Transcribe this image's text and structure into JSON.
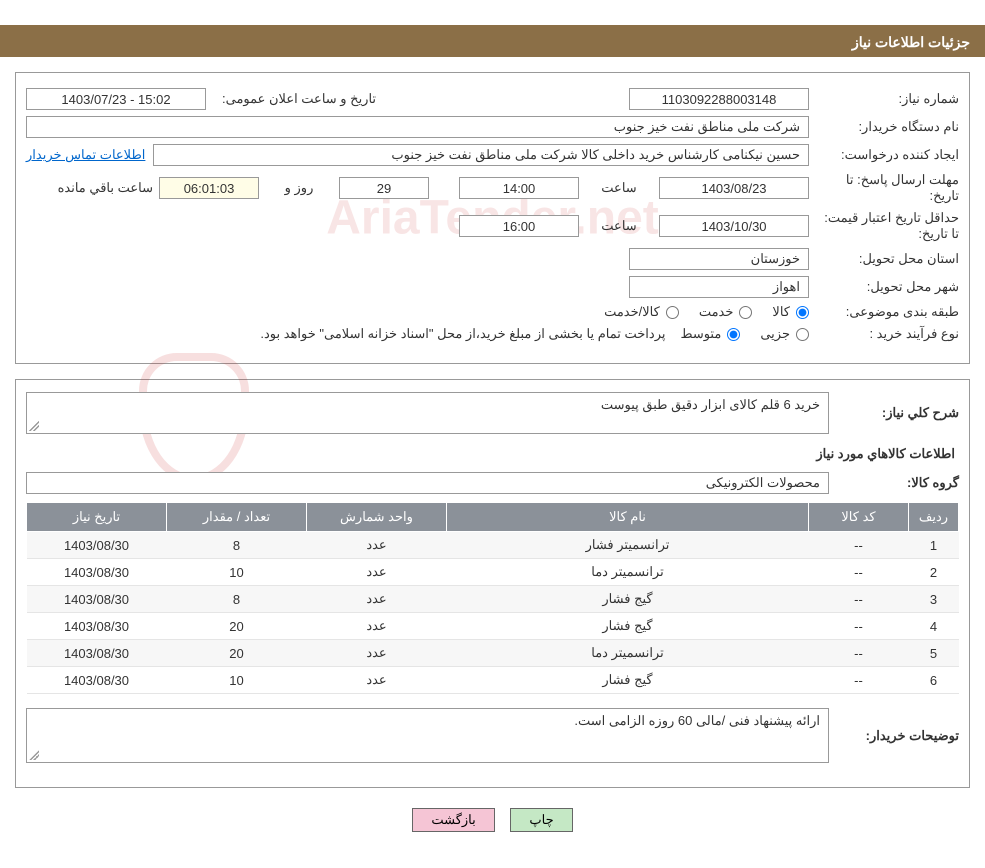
{
  "header": {
    "title": "جزئیات اطلاعات نیاز"
  },
  "form": {
    "need_number_label": "شماره نیاز:",
    "need_number": "1103092288003148",
    "announce_label": "تاریخ و ساعت اعلان عمومی:",
    "announce_value": "15:02 - 1403/07/23",
    "buyer_org_label": "نام دستگاه خریدار:",
    "buyer_org": "شرکت ملی مناطق نفت خیز جنوب",
    "requester_label": "ایجاد کننده درخواست:",
    "requester": "حسین  نیکنامی  کارشناس خرید داخلی کالا شرکت ملی مناطق نفت خیز جنوب",
    "contact_link": "اطلاعات تماس خریدار",
    "deadline_label": "مهلت ارسال پاسخ: تا تاریخ:",
    "deadline_date": "1403/08/23",
    "time_label": "ساعت",
    "deadline_time": "14:00",
    "days_label": "روز و",
    "days_remaining": "29",
    "timer": "06:01:03",
    "timer_trail": "ساعت باقي مانده",
    "price_validity_label": "حداقل تاریخ اعتبار قیمت: تا تاریخ:",
    "price_validity_date": "1403/10/30",
    "price_validity_time": "16:00",
    "province_label": "استان محل تحویل:",
    "province": "خوزستان",
    "city_label": "شهر محل تحویل:",
    "city": "اهواز",
    "category_label": "طبقه بندی موضوعی:",
    "cat_goods": "کالا",
    "cat_service": "خدمت",
    "cat_goods_service": "کالا/خدمت",
    "purchase_type_label": "نوع فرآیند خرید :",
    "pt_partial": "جزیی",
    "pt_medium": "متوسط",
    "purchase_note": "پرداخت تمام یا بخشی از مبلغ خرید،از محل \"اسناد خزانه اسلامی\" خواهد بود."
  },
  "details": {
    "desc_label": "شرح کلي نياز:",
    "desc": "خرید 6 قلم کالای ابزار دقیق طبق پیوست",
    "items_section_title": "اطلاعات کالاهاي مورد نياز",
    "group_label": "گروه کالا:",
    "group": "محصولات الکترونیکی",
    "buyer_notes_label": "توضیحات خریدار:",
    "buyer_notes": "ارائه پیشنهاد فنی /مالی 60 روزه الزامی است."
  },
  "table": {
    "columns": [
      "ردیف",
      "کد کالا",
      "نام کالا",
      "واحد شمارش",
      "تعداد / مقدار",
      "تاریخ نیاز"
    ],
    "rows": [
      [
        "1",
        "--",
        "ترانسمیتر فشار",
        "عدد",
        "8",
        "1403/08/30"
      ],
      [
        "2",
        "--",
        "ترانسمیتر دما",
        "عدد",
        "10",
        "1403/08/30"
      ],
      [
        "3",
        "--",
        "گیج فشار",
        "عدد",
        "8",
        "1403/08/30"
      ],
      [
        "4",
        "--",
        "گیج فشار",
        "عدد",
        "20",
        "1403/08/30"
      ],
      [
        "5",
        "--",
        "ترانسمیتر دما",
        "عدد",
        "20",
        "1403/08/30"
      ],
      [
        "6",
        "--",
        "گیج فشار",
        "عدد",
        "10",
        "1403/08/30"
      ]
    ]
  },
  "buttons": {
    "print": "چاپ",
    "back": "بازگشت"
  },
  "watermark": "AriaTender.net",
  "colors": {
    "header_bg": "#8b6f47",
    "table_header_bg": "#8b9199",
    "btn_print_bg": "#c5e8c5",
    "btn_back_bg": "#f5c5d5",
    "link_color": "#0066cc"
  }
}
